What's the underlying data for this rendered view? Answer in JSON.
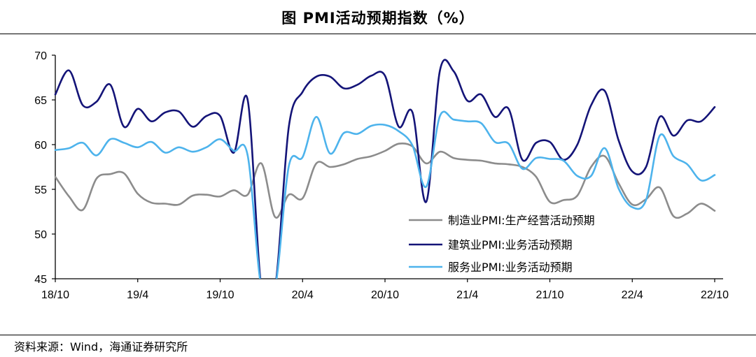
{
  "title": "图  PMI活动预期指数（%）",
  "source": "资料来源：Wind，海通证券研究所",
  "chart_data": {
    "type": "line",
    "title": "图  PMI活动预期指数（%）",
    "xlabel": "",
    "ylabel": "",
    "ylim": [
      45,
      70
    ],
    "yticks": [
      "70",
      "65",
      "60",
      "55",
      "50",
      "45"
    ],
    "ytick_values": [
      70,
      65,
      60,
      55,
      50,
      45
    ],
    "xticks": [
      "18/10",
      "19/4",
      "19/10",
      "20/4",
      "20/10",
      "21/4",
      "21/10",
      "22/4",
      "22/10"
    ],
    "xtick_index": [
      0,
      6,
      12,
      18,
      24,
      30,
      36,
      42,
      48
    ],
    "grid": false,
    "legend_position": "bottom-right",
    "categories": [
      "18/10",
      "18/11",
      "18/12",
      "19/1",
      "19/2",
      "19/3",
      "19/4",
      "19/5",
      "19/6",
      "19/7",
      "19/8",
      "19/9",
      "19/10",
      "19/11",
      "19/12",
      "20/1",
      "20/2",
      "20/3",
      "20/4",
      "20/5",
      "20/6",
      "20/7",
      "20/8",
      "20/9",
      "20/10",
      "20/11",
      "20/12",
      "21/1",
      "21/2",
      "21/3",
      "21/4",
      "21/5",
      "21/6",
      "21/7",
      "21/8",
      "21/9",
      "21/10",
      "21/11",
      "21/12",
      "22/1",
      "22/2",
      "22/3",
      "22/4",
      "22/5",
      "22/6",
      "22/7",
      "22/8",
      "22/9",
      "22/10"
    ],
    "series": [
      {
        "name": "制造业PMI:生产经营活动预期",
        "color": "#8c8c8c",
        "values": [
          56.4,
          54.2,
          52.7,
          56.2,
          56.7,
          56.8,
          54.5,
          53.5,
          53.4,
          53.3,
          54.3,
          54.4,
          54.2,
          54.9,
          54.4,
          57.9,
          51.9,
          54.4,
          54.0,
          57.9,
          57.5,
          57.8,
          58.4,
          58.7,
          59.3,
          60.1,
          59.8,
          57.9,
          59.2,
          58.5,
          58.3,
          58.2,
          57.9,
          57.8,
          57.5,
          56.4,
          53.6,
          53.8,
          54.3,
          57.5,
          58.7,
          55.7,
          53.3,
          53.9,
          55.2,
          52.0,
          52.3,
          53.4,
          52.6
        ]
      },
      {
        "name": "建筑业PMI:业务活动预期",
        "color": "#141478",
        "values": [
          65.6,
          68.3,
          64.4,
          64.8,
          66.7,
          62.0,
          64.0,
          62.6,
          63.6,
          63.7,
          62.0,
          63.2,
          63.2,
          59.1,
          65.0,
          44.0,
          44.0,
          62.0,
          65.9,
          67.6,
          67.6,
          66.3,
          66.7,
          67.7,
          67.7,
          62.0,
          63.6,
          53.6,
          68.3,
          68.2,
          64.9,
          65.6,
          63.1,
          64.0,
          58.3,
          60.2,
          60.3,
          58.3,
          60.0,
          64.4,
          66.0,
          60.5,
          57.0,
          57.5,
          63.1,
          61.0,
          62.7,
          62.6,
          64.2
        ]
      },
      {
        "name": "服务业PMI:业务活动预期",
        "color": "#4db3ec",
        "values": [
          59.4,
          59.6,
          60.2,
          58.8,
          60.6,
          60.2,
          59.7,
          60.3,
          59.1,
          59.7,
          59.2,
          59.7,
          60.6,
          59.3,
          58.8,
          44.0,
          44.0,
          57.6,
          58.6,
          63.1,
          59.0,
          61.3,
          61.2,
          62.1,
          62.2,
          61.5,
          59.9,
          55.3,
          63.2,
          62.8,
          62.6,
          62.4,
          60.3,
          60.1,
          57.3,
          58.5,
          58.4,
          58.2,
          56.5,
          56.5,
          59.6,
          55.1,
          53.0,
          53.8,
          61.0,
          58.7,
          57.8,
          56.0,
          56.6
        ]
      }
    ]
  }
}
